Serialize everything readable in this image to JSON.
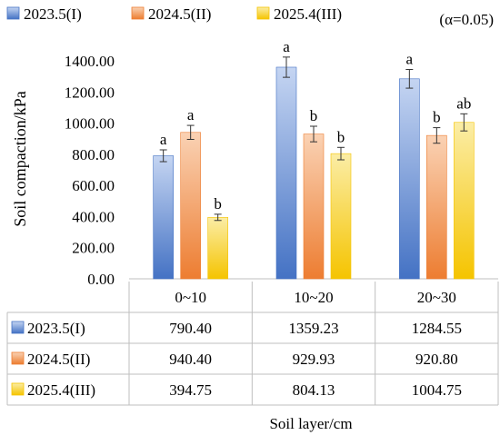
{
  "chart_data": {
    "type": "bar",
    "title": "",
    "annotation": "(α=0.05)",
    "xlabel": "Soil layer/cm",
    "ylabel": "Soil compaction/kPa",
    "ylim": [
      0,
      1400
    ],
    "yticks": [
      0,
      200,
      400,
      600,
      800,
      1000,
      1200,
      1400
    ],
    "ytick_labels": [
      "0.00",
      "200.00",
      "400.00",
      "600.00",
      "800.00",
      "1000.00",
      "1200.00",
      "1400.00"
    ],
    "legend_position": "top",
    "grid": false,
    "categories": [
      "0~10",
      "10~20",
      "20~30"
    ],
    "series": [
      {
        "name": "2023.5(I)",
        "color": "#4472C4",
        "values": [
          790.4,
          1359.23,
          1284.55
        ],
        "value_labels": [
          "790.40",
          "1359.23",
          "1284.55"
        ],
        "error": [
          38,
          65,
          60
        ],
        "letters": [
          "a",
          "a",
          "a"
        ]
      },
      {
        "name": "2024.5(II)",
        "color": "#ED7D31",
        "values": [
          940.4,
          929.93,
          920.8
        ],
        "value_labels": [
          "940.40",
          "929.93",
          "920.80"
        ],
        "error": [
          45,
          50,
          50
        ],
        "letters": [
          "a",
          "b",
          "b"
        ]
      },
      {
        "name": "2025.4(III)",
        "color": "#F5C400",
        "values": [
          394.75,
          804.13,
          1004.75
        ],
        "value_labels": [
          "394.75",
          "804.13",
          "1004.75"
        ],
        "error": [
          20,
          40,
          55
        ],
        "letters": [
          "b",
          "b",
          "ab"
        ]
      }
    ]
  }
}
